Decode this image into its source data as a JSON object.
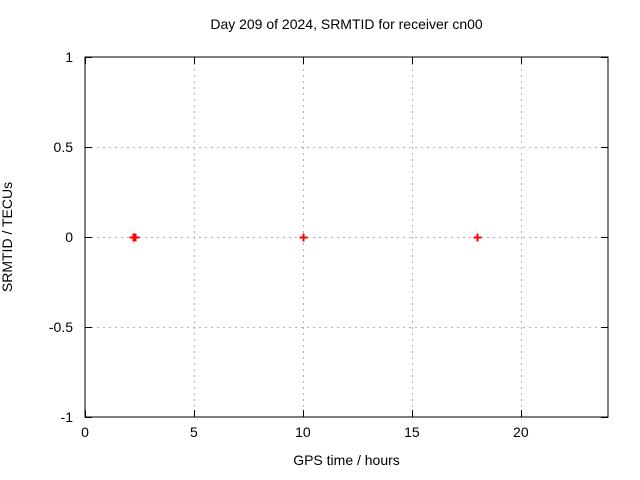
{
  "chart_data": {
    "type": "scatter",
    "title": "Day 209 of 2024, SRMTID for receiver cn00",
    "xlabel": "GPS time / hours",
    "ylabel": "SRMTID / TECUs",
    "xlim": [
      0,
      24
    ],
    "ylim": [
      -1,
      1
    ],
    "xticks": [
      {
        "value": 0,
        "label": "0"
      },
      {
        "value": 5,
        "label": "5"
      },
      {
        "value": 10,
        "label": "10"
      },
      {
        "value": 15,
        "label": "15"
      },
      {
        "value": 20,
        "label": "20"
      }
    ],
    "yticks": [
      {
        "value": -1,
        "label": "-1"
      },
      {
        "value": -0.5,
        "label": "-0.5"
      },
      {
        "value": 0,
        "label": "0"
      },
      {
        "value": 0.5,
        "label": "0.5"
      },
      {
        "value": 1,
        "label": "1"
      }
    ],
    "grid": true,
    "legend": "none",
    "colors": {
      "background": "#ffffff",
      "frame": "#000000",
      "grid": "#b0b0b0",
      "marker": "#ff0000"
    },
    "series": [
      {
        "name": "SRMTID",
        "marker": "plus",
        "color": "#ff0000",
        "x": [
          2.2,
          2.3,
          10.0,
          18.0
        ],
        "y": [
          0,
          0,
          0,
          0
        ]
      }
    ]
  }
}
